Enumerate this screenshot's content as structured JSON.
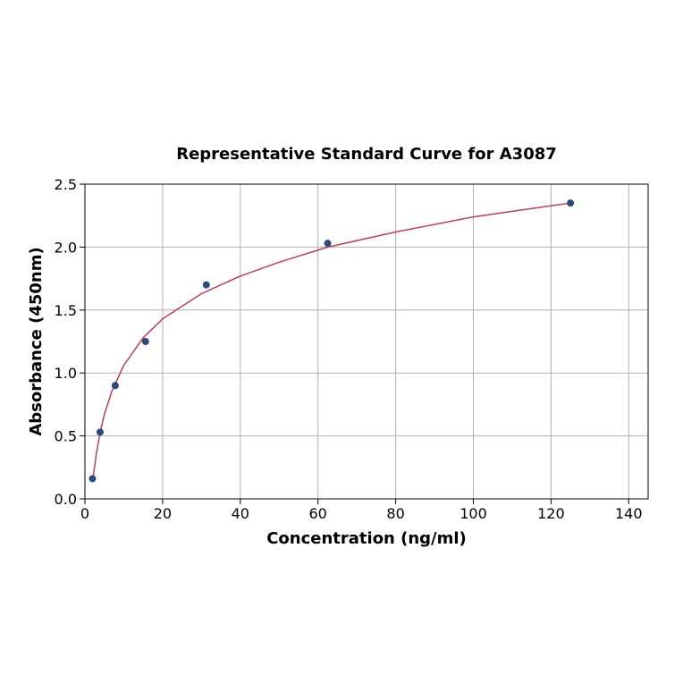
{
  "chart_data": {
    "type": "scatter",
    "title": "Representative Standard Curve for A3087",
    "xlabel": "Concentration (ng/ml)",
    "ylabel": "Absorbance (450nm)",
    "xlim": [
      0,
      145
    ],
    "ylim": [
      0,
      2.5
    ],
    "x_ticks": [
      0,
      20,
      40,
      60,
      80,
      100,
      120,
      140
    ],
    "y_ticks": [
      0.0,
      0.5,
      1.0,
      1.5,
      2.0,
      2.5
    ],
    "x_tick_labels": [
      "0",
      "20",
      "40",
      "60",
      "80",
      "100",
      "120",
      "140"
    ],
    "y_tick_labels": [
      "0.0",
      "0.5",
      "1.0",
      "1.5",
      "2.0",
      "2.5"
    ],
    "grid": true,
    "series": [
      {
        "kind": "points",
        "x": [
          1.95,
          3.9,
          7.8,
          15.6,
          31.25,
          62.5,
          125
        ],
        "y": [
          0.16,
          0.53,
          0.9,
          1.25,
          1.7,
          2.03,
          2.35
        ],
        "color": "#2e4a7a"
      },
      {
        "kind": "fitted-curve",
        "x": [
          1.95,
          3,
          4,
          5,
          7,
          10,
          15,
          20,
          30,
          40,
          50,
          62.5,
          80,
          100,
          125
        ],
        "y": [
          0.14,
          0.37,
          0.54,
          0.67,
          0.86,
          1.06,
          1.28,
          1.43,
          1.63,
          1.77,
          1.88,
          2.0,
          2.12,
          2.24,
          2.35
        ],
        "color": "#b5415f"
      }
    ]
  }
}
